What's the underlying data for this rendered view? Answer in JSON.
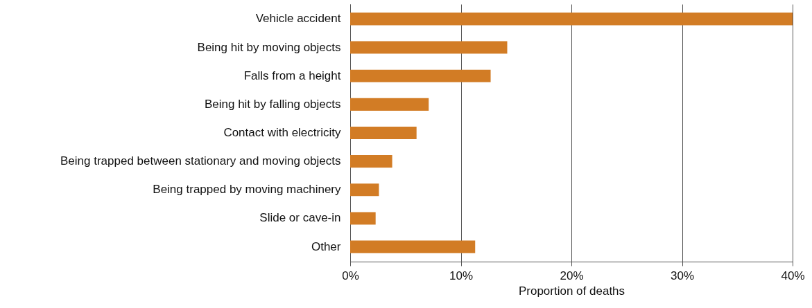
{
  "chart_data": {
    "type": "bar",
    "orientation": "horizontal",
    "xlabel": "Proportion of deaths",
    "categories": [
      "Vehicle accident",
      "Being hit by moving objects",
      "Falls from a height",
      "Being hit by falling objects",
      "Contact with electricity",
      "Being trapped between stationary and moving objects",
      "Being trapped by moving machinery",
      "Slide or cave-in",
      "Other"
    ],
    "values": [
      40,
      14.2,
      12.7,
      7.1,
      6.0,
      3.8,
      2.6,
      2.3,
      11.3
    ],
    "color": "#d27c25",
    "xlim": [
      0,
      40
    ],
    "xticks": [
      {
        "value": 0,
        "label": "0%"
      },
      {
        "value": 10,
        "label": "10%"
      },
      {
        "value": 20,
        "label": "20%"
      },
      {
        "value": 30,
        "label": "30%"
      },
      {
        "value": 40,
        "label": "40%"
      }
    ],
    "grid": "x"
  }
}
